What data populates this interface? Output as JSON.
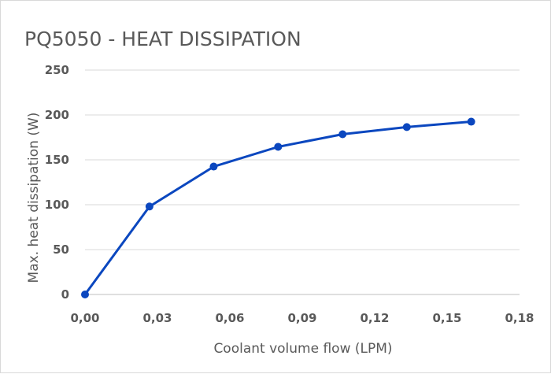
{
  "chart_data": {
    "type": "line",
    "title": "PQ5050 - HEAT DISSIPATION",
    "xlabel": "Coolant volume flow (LPM)",
    "ylabel": "Max. heat dissipation (W)",
    "xlim": [
      0,
      0.18
    ],
    "ylim": [
      0,
      250
    ],
    "x_ticks": [
      0,
      0.03,
      0.06,
      0.09,
      0.12,
      0.15,
      0.18
    ],
    "x_tick_labels": [
      "0,00",
      "0,03",
      "0,06",
      "0,09",
      "0,12",
      "0,15",
      "0,18"
    ],
    "y_ticks": [
      0,
      50,
      100,
      150,
      200,
      250
    ],
    "y_tick_labels": [
      "0",
      "50",
      "100",
      "150",
      "200",
      "250"
    ],
    "grid": true,
    "legend": "none",
    "series": [
      {
        "color": "#0b47bf",
        "x": [
          0,
          0.0267,
          0.0533,
          0.08,
          0.1067,
          0.1333,
          0.16
        ],
        "y": [
          0,
          98,
          142.5,
          164.5,
          178.5,
          186.5,
          192.5
        ]
      }
    ]
  }
}
